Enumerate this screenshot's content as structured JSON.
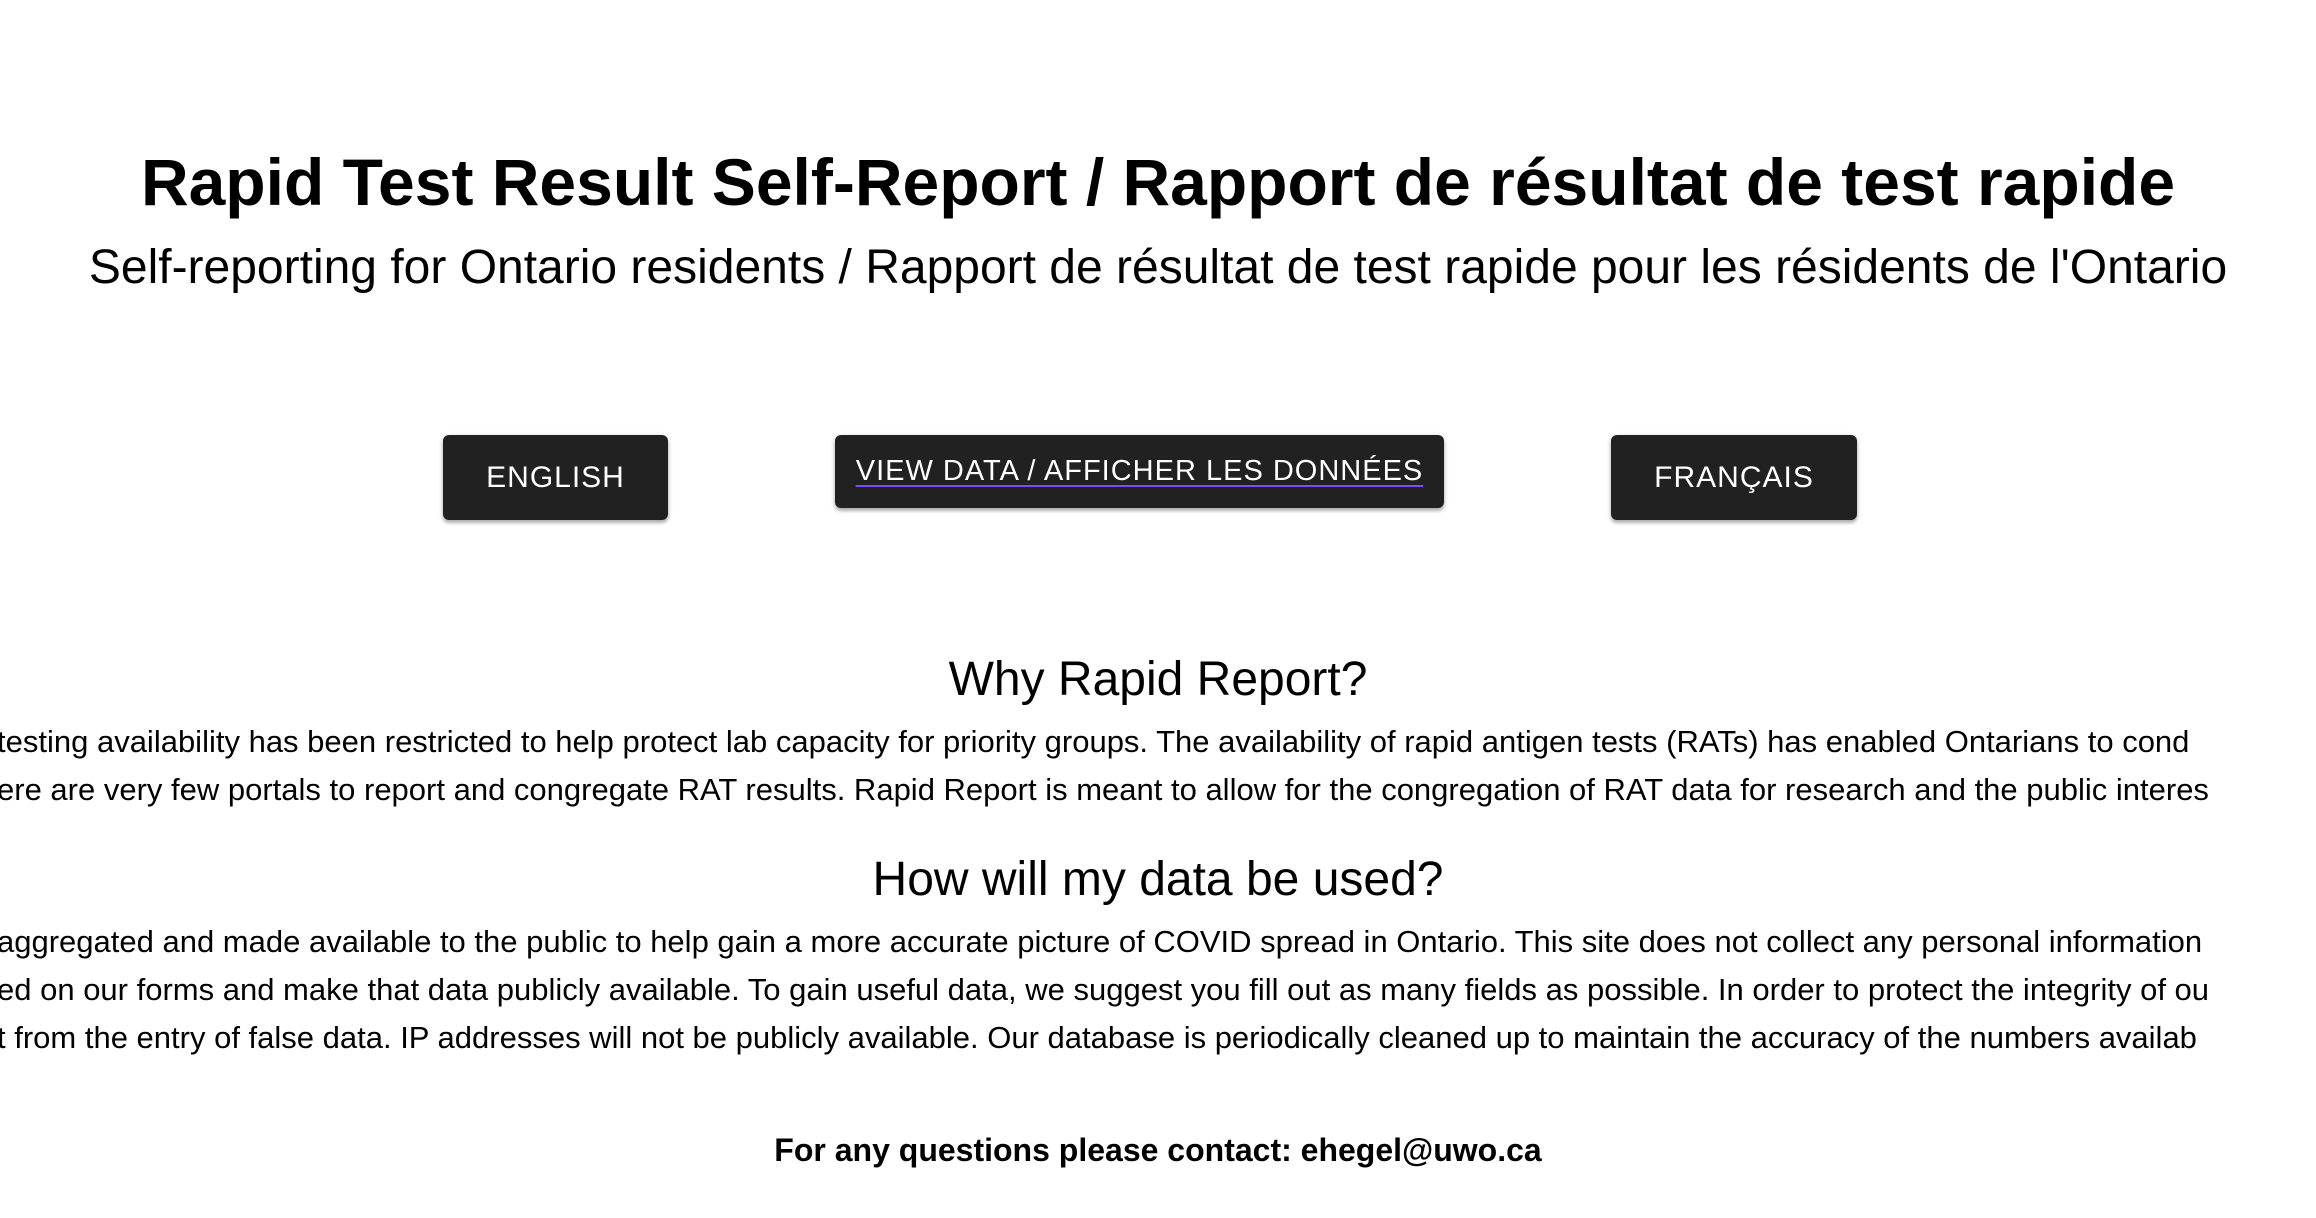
{
  "header": {
    "title": "Rapid Test Result Self-Report / Rapport de résultat de test rapide",
    "subtitle": "Self-reporting for Ontario residents / Rapport de résultat de test rapide pour les résidents de l'Ontario"
  },
  "buttons": {
    "english": "ENGLISH",
    "view_data": "VIEW DATA / AFFICHER LES DONNÉES",
    "french": "FRANÇAIS"
  },
  "sections": {
    "why": {
      "heading": "Why Rapid Report?",
      "lines": [
        "testing availability has been restricted to help protect lab capacity for priority groups. The availability of rapid antigen tests (RATs) has enabled Ontarians to cond",
        "ere are very few portals to report and congregate RAT results. Rapid Report is meant to allow for the congregation of RAT data for research and the public interes"
      ]
    },
    "how": {
      "heading": "How will my data be used?",
      "lines": [
        "aggregated and made available to the public to help gain a more accurate picture of COVID spread in Ontario. This site does not collect any personal information",
        "ed on our forms and make that data publicly available. To gain useful data, we suggest you fill out as many fields as possible. In order to protect the integrity of ou",
        "t from the entry of false data. IP addresses will not be publicly available. Our database is periodically cleaned up to maintain the accuracy of the numbers availab"
      ]
    }
  },
  "footer": {
    "contact": "For any questions please contact: ehegel@uwo.ca"
  },
  "colors": {
    "button_bg": "#212121",
    "button_text": "#ffffff",
    "link_underline": "#7c4dff"
  }
}
